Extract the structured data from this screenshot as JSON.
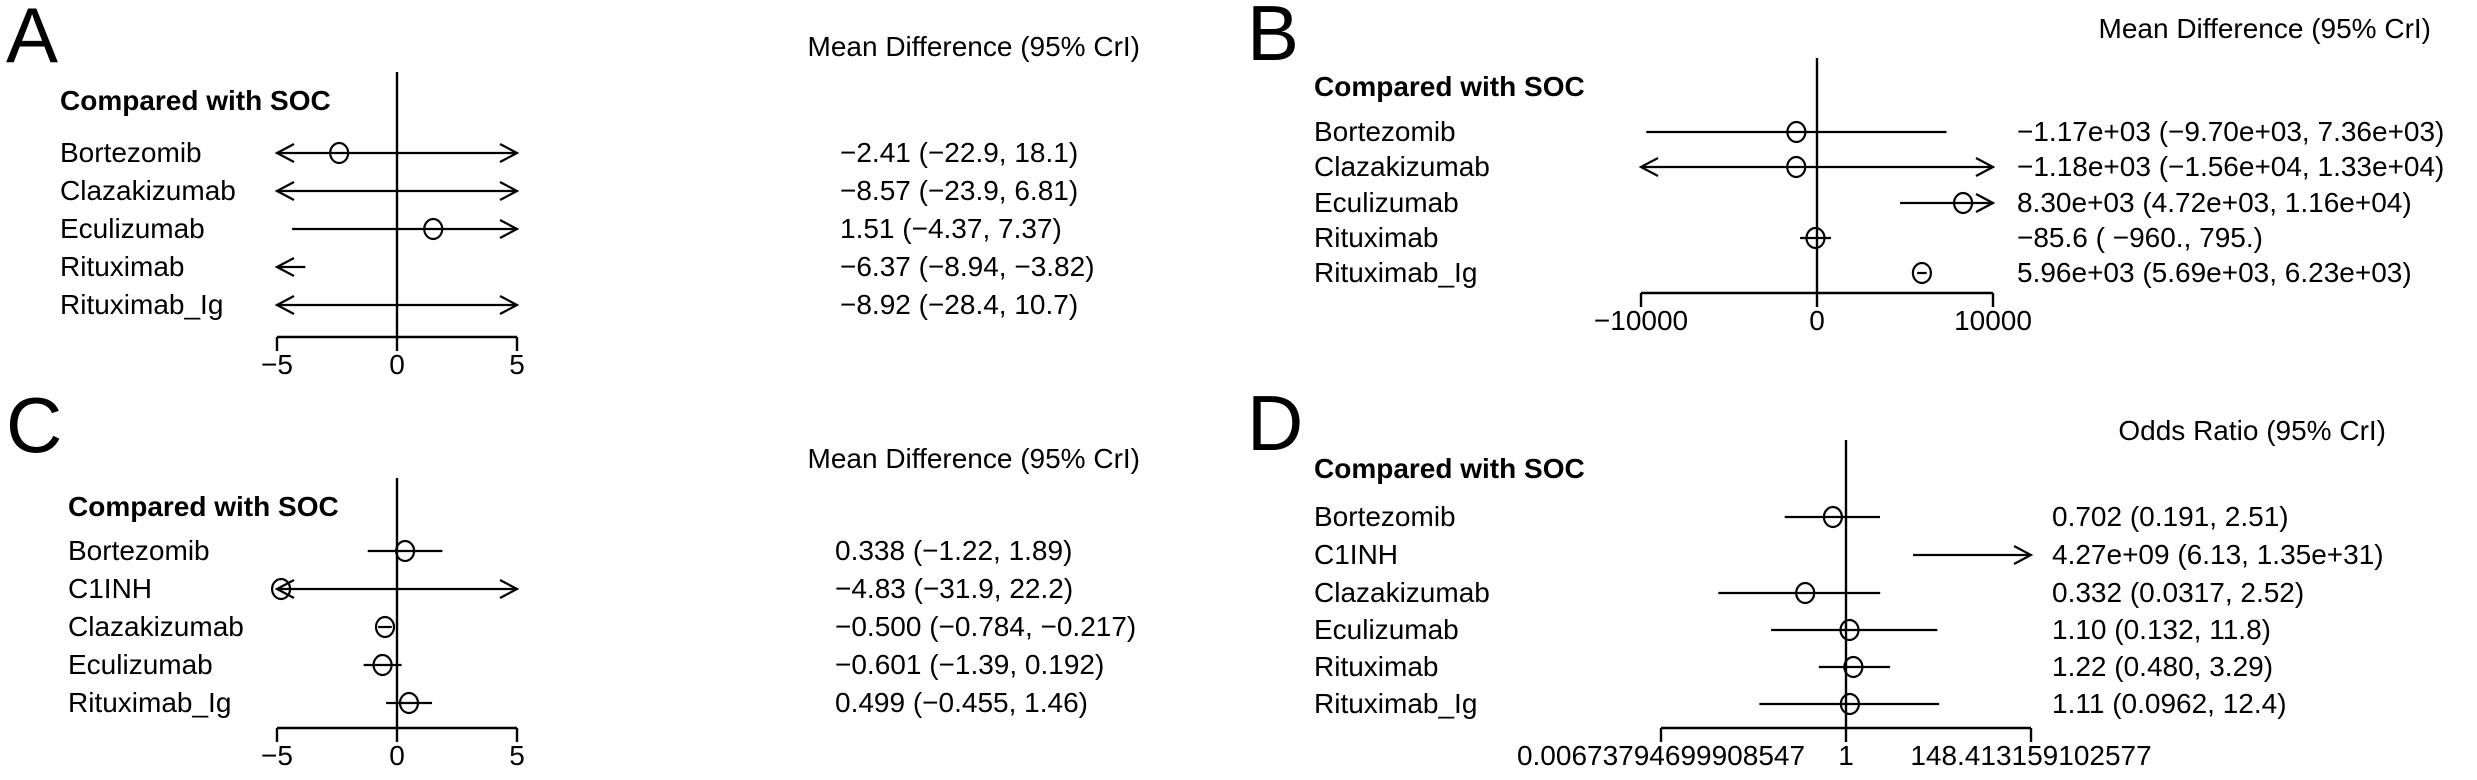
{
  "figure": {
    "description": "Four-panel forest plot figure comparing treatments with SOC",
    "background_color": "#ffffff",
    "line_color": "#000000"
  },
  "chart_data": [
    {
      "panel": "A",
      "type": "forest",
      "title": "Mean Difference (95% CrI)",
      "header": "Compared with SOC",
      "scale": "linear",
      "axis": {
        "min": -5,
        "max": 5,
        "ref": 0,
        "tick_values": [
          -5,
          0,
          5
        ],
        "ticks": [
          "−5",
          "0",
          "5"
        ]
      },
      "rows": [
        {
          "label": "Bortezomib",
          "estimate": -2.41,
          "lower": -22.9,
          "upper": 18.1,
          "display": "−2.41 (−22.9, 18.1)"
        },
        {
          "label": "Clazakizumab",
          "estimate": -8.57,
          "lower": -23.9,
          "upper": 6.81,
          "display": "−8.57 (−23.9, 6.81)"
        },
        {
          "label": "Eculizumab",
          "estimate": 1.51,
          "lower": -4.37,
          "upper": 7.37,
          "display": "1.51 (−4.37, 7.37)"
        },
        {
          "label": "Rituximab",
          "estimate": -6.37,
          "lower": -8.94,
          "upper": -3.82,
          "display": "−6.37 (−8.94, −3.82)"
        },
        {
          "label": "Rituximab_Ig",
          "estimate": -8.92,
          "lower": -28.4,
          "upper": 10.7,
          "display": "−8.92 (−28.4, 10.7)"
        }
      ]
    },
    {
      "panel": "B",
      "type": "forest",
      "title": "Mean Difference (95% CrI)",
      "header": "Compared with SOC",
      "scale": "linear",
      "axis": {
        "min": -10000,
        "max": 10000,
        "ref": 0,
        "tick_values": [
          -10000,
          0,
          10000
        ],
        "ticks": [
          "−10000",
          "0",
          "10000"
        ]
      },
      "rows": [
        {
          "label": "Bortezomib",
          "estimate": -1170,
          "lower": -9700,
          "upper": 7360,
          "display": "−1.17e+03 (−9.70e+03, 7.36e+03)"
        },
        {
          "label": "Clazakizumab",
          "estimate": -1180,
          "lower": -15600,
          "upper": 13300,
          "display": "−1.18e+03 (−1.56e+04, 1.33e+04)"
        },
        {
          "label": "Eculizumab",
          "estimate": 8300,
          "lower": 4720,
          "upper": 11600,
          "display": "8.30e+03 (4.72e+03, 1.16e+04)"
        },
        {
          "label": "Rituximab",
          "estimate": -85.6,
          "lower": -960,
          "upper": 795,
          "display": "−85.6 ( −960., 795.)"
        },
        {
          "label": "Rituximab_Ig",
          "estimate": 5960,
          "lower": 5690,
          "upper": 6230,
          "display": "5.96e+03 (5.69e+03, 6.23e+03)"
        }
      ]
    },
    {
      "panel": "C",
      "type": "forest",
      "title": "Mean Difference (95% CrI)",
      "header": "Compared with SOC",
      "scale": "linear",
      "axis": {
        "min": -5,
        "max": 5,
        "ref": 0,
        "tick_values": [
          -5,
          0,
          5
        ],
        "ticks": [
          "−5",
          "0",
          "5"
        ]
      },
      "rows": [
        {
          "label": "Bortezomib",
          "estimate": 0.338,
          "lower": -1.22,
          "upper": 1.89,
          "display": "0.338 (−1.22, 1.89)"
        },
        {
          "label": "C1INH",
          "estimate": -4.83,
          "lower": -31.9,
          "upper": 22.2,
          "display": "−4.83 (−31.9, 22.2)"
        },
        {
          "label": "Clazakizumab",
          "estimate": -0.5,
          "lower": -0.784,
          "upper": -0.217,
          "display": "−0.500 (−0.784, −0.217)"
        },
        {
          "label": "Eculizumab",
          "estimate": -0.601,
          "lower": -1.39,
          "upper": 0.192,
          "display": "−0.601 (−1.39, 0.192)"
        },
        {
          "label": "Rituximab_Ig",
          "estimate": 0.499,
          "lower": -0.455,
          "upper": 1.46,
          "display": "0.499 (−0.455, 1.46)"
        }
      ]
    },
    {
      "panel": "D",
      "type": "forest",
      "title": "Odds Ratio (95% CrI)",
      "header": "Compared with SOC",
      "scale": "log",
      "axis": {
        "min": 0.00673794699908547,
        "max": 148.413159102577,
        "ref": 1,
        "tick_values": [
          0.00673794699908547,
          1,
          148.413159102577
        ],
        "ticks": [
          "0.00673794699908547",
          "1",
          "148.413159102577"
        ]
      },
      "rows": [
        {
          "label": "Bortezomib",
          "estimate": 0.702,
          "lower": 0.191,
          "upper": 2.51,
          "display": "0.702 (0.191, 2.51)"
        },
        {
          "label": "C1INH",
          "estimate": 4270000000.0,
          "lower": 6.13,
          "upper": 1.35e+31,
          "display": "4.27e+09 (6.13, 1.35e+31)"
        },
        {
          "label": "Clazakizumab",
          "estimate": 0.332,
          "lower": 0.0317,
          "upper": 2.52,
          "display": "0.332 (0.0317, 2.52)"
        },
        {
          "label": "Eculizumab",
          "estimate": 1.1,
          "lower": 0.132,
          "upper": 11.8,
          "display": "1.10 (0.132, 11.8)"
        },
        {
          "label": "Rituximab",
          "estimate": 1.22,
          "lower": 0.48,
          "upper": 3.29,
          "display": "1.22 (0.480, 3.29)"
        },
        {
          "label": "Rituximab_Ig",
          "estimate": 1.11,
          "lower": 0.0962,
          "upper": 12.4,
          "display": "1.11 (0.0962, 12.4)"
        }
      ]
    }
  ]
}
